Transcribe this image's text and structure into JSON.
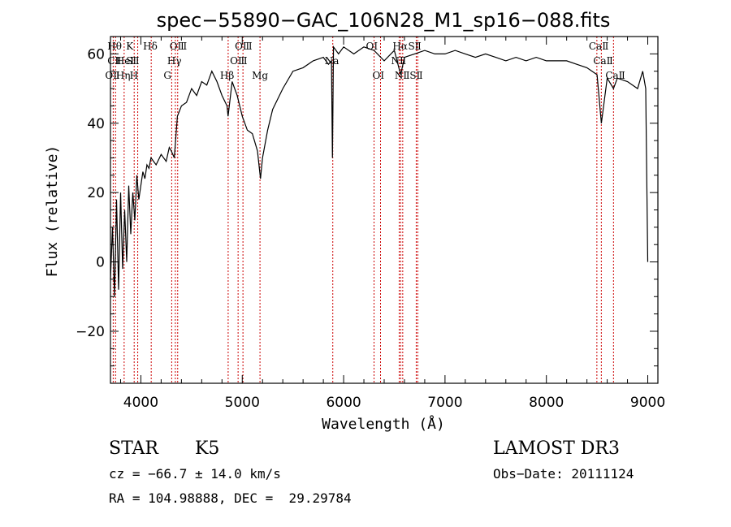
{
  "chart_data": {
    "type": "line",
    "title": "spec−55890−GAC_106N28_M1_sp16−088.fits",
    "xlabel": "Wavelength (Å)",
    "ylabel": "Flux (relative)",
    "xlim": [
      3700,
      9100
    ],
    "ylim": [
      -35,
      65
    ],
    "xticks": [
      "4000",
      "5000",
      "6000",
      "7000",
      "8000",
      "9000"
    ],
    "yticks": [
      "−20",
      "0",
      "20",
      "40",
      "60"
    ],
    "xtick_values": [
      4000,
      5000,
      6000,
      7000,
      8000,
      9000
    ],
    "ytick_values": [
      -20,
      0,
      20,
      40,
      60
    ],
    "series": [
      {
        "name": "flux",
        "x": [
          3700,
          3720,
          3740,
          3760,
          3780,
          3800,
          3820,
          3840,
          3860,
          3880,
          3900,
          3920,
          3940,
          3960,
          3980,
          4000,
          4020,
          4040,
          4060,
          4080,
          4100,
          4150,
          4200,
          4250,
          4280,
          4300,
          4330,
          4360,
          4400,
          4450,
          4500,
          4550,
          4600,
          4650,
          4700,
          4750,
          4800,
          4850,
          4860,
          4900,
          4950,
          5000,
          5050,
          5100,
          5150,
          5180,
          5200,
          5250,
          5300,
          5400,
          5500,
          5600,
          5700,
          5800,
          5850,
          5880,
          5890,
          5900,
          5950,
          6000,
          6100,
          6200,
          6300,
          6400,
          6500,
          6563,
          6600,
          6700,
          6800,
          6900,
          7000,
          7100,
          7200,
          7300,
          7400,
          7500,
          7600,
          7700,
          7800,
          7900,
          8000,
          8100,
          8200,
          8300,
          8400,
          8500,
          8542,
          8600,
          8662,
          8700,
          8800,
          8900,
          8950,
          8980,
          9000
        ],
        "y": [
          -5,
          10,
          -10,
          18,
          -8,
          20,
          -2,
          15,
          0,
          22,
          8,
          20,
          12,
          25,
          18,
          22,
          26,
          24,
          28,
          27,
          30,
          28,
          31,
          29,
          33,
          32,
          30,
          42,
          45,
          46,
          50,
          48,
          52,
          51,
          55,
          52,
          48,
          45,
          42,
          52,
          48,
          42,
          38,
          37,
          32,
          24,
          30,
          38,
          44,
          50,
          55,
          56,
          58,
          59,
          57,
          58,
          30,
          62,
          60,
          62,
          60,
          62,
          61,
          58,
          61,
          54,
          59,
          60,
          61,
          60,
          60,
          61,
          60,
          59,
          60,
          59,
          58,
          59,
          58,
          59,
          58,
          58,
          58,
          57,
          56,
          54,
          40,
          53,
          50,
          53,
          52,
          50,
          55,
          50,
          0
        ]
      }
    ],
    "lines": [
      {
        "lines": [
          "OⅡ"
        ],
        "wavelength": 3727,
        "row": 2
      },
      {
        "lines": [
          "Hθ",
          "CⅡ"
        ],
        "wavelength": 3750,
        "row": 0
      },
      {
        "lines": [
          "HeⅠ",
          "Hη"
        ],
        "wavelength": 3835,
        "row": 1
      },
      {
        "lines": [
          "K",
          "SⅡ"
        ],
        "wavelength": 3934,
        "row": 0
      },
      {
        "lines": [
          "H"
        ],
        "wavelength": 3969,
        "row": 2
      },
      {
        "lines": [
          "Hδ"
        ],
        "wavelength": 4102,
        "row": 0
      },
      {
        "lines": [
          "OⅢ"
        ],
        "wavelength": 4363,
        "row": 0
      },
      {
        "lines": [
          "Hγ"
        ],
        "wavelength": 4340,
        "row": 1
      },
      {
        "lines": [
          "G"
        ],
        "wavelength": 4304,
        "row": 2
      },
      {
        "lines": [
          "Hβ"
        ],
        "wavelength": 4861,
        "row": 2
      },
      {
        "lines": [
          "OⅢ"
        ],
        "wavelength": 4959,
        "row": 1
      },
      {
        "lines": [
          "OⅢ"
        ],
        "wavelength": 5007,
        "row": 0
      },
      {
        "lines": [
          "Mg"
        ],
        "wavelength": 5175,
        "row": 2
      },
      {
        "lines": [
          "Na"
        ],
        "wavelength": 5893,
        "row": 1
      },
      {
        "lines": [
          "OⅠ"
        ],
        "wavelength": 6300,
        "row": 0
      },
      {
        "lines": [
          "OⅠ"
        ],
        "wavelength": 6364,
        "row": 2
      },
      {
        "lines": [
          "Hα"
        ],
        "wavelength": 6563,
        "row": 0
      },
      {
        "lines": [
          "NⅡ"
        ],
        "wavelength": 6548,
        "row": 1
      },
      {
        "lines": [
          "NⅡ"
        ],
        "wavelength": 6583,
        "row": 2
      },
      {
        "lines": [
          "SⅡ"
        ],
        "wavelength": 6716,
        "row": 0
      },
      {
        "lines": [
          "SⅡ"
        ],
        "wavelength": 6731,
        "row": 2
      },
      {
        "lines": [
          "CaⅡ"
        ],
        "wavelength": 8498,
        "row": 0
      },
      {
        "lines": [
          "CaⅡ"
        ],
        "wavelength": 8542,
        "row": 1
      },
      {
        "lines": [
          "CaⅡ"
        ],
        "wavelength": 8662,
        "row": 2
      }
    ],
    "line_color": "#cc0000"
  },
  "info": {
    "class": "STAR",
    "subclass": "K5",
    "survey": "LAMOST DR3",
    "cz": "cz = −66.7 ± 14.0 km/s",
    "obs_date": "Obs−Date: 20111124",
    "coords": "RA = 104.98888, DEC =  29.29784"
  }
}
